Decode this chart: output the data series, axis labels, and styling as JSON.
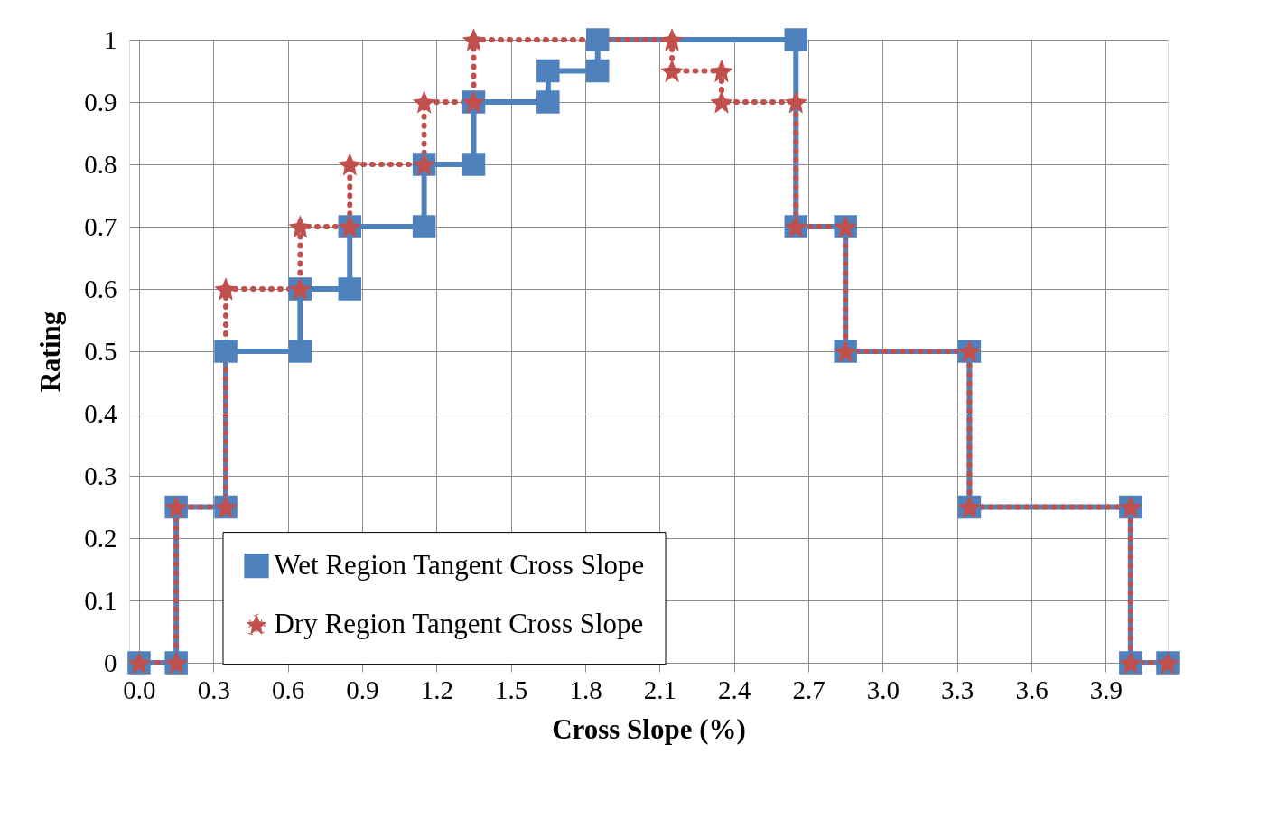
{
  "chart_data": {
    "type": "line",
    "xlabel": "Cross Slope (%)",
    "ylabel": "Rating",
    "xlim": [
      -0.04,
      4.15
    ],
    "ylim": [
      0,
      1
    ],
    "xticks": [
      {
        "value": 0,
        "label": "0.0"
      },
      0.3,
      0.6,
      0.9,
      1.2,
      1.5,
      1.8,
      2.1,
      2.4,
      2.7,
      {
        "value": 3,
        "label": "3.0"
      },
      3.3,
      3.6,
      3.9
    ],
    "yticks": [
      0,
      0.1,
      0.2,
      0.3,
      0.4,
      0.5,
      0.6,
      0.7,
      0.8,
      0.9,
      1
    ],
    "grid": true,
    "legend": "bottom",
    "series": [
      {
        "name": "Wet Region Tangent Cross Slope",
        "color": "#4f81bd",
        "marker": "square",
        "line_style": "solid",
        "x": [
          0,
          0.15,
          0.15,
          0.35,
          0.35,
          0.65,
          0.65,
          0.85,
          0.85,
          1.15,
          1.15,
          1.35,
          1.35,
          1.65,
          1.65,
          1.85,
          1.85,
          2.65,
          2.65,
          2.85,
          2.85,
          3.35,
          3.35,
          4.0,
          4.0,
          4.15
        ],
        "values": [
          0,
          0,
          0.25,
          0.25,
          0.5,
          0.5,
          0.6,
          0.6,
          0.7,
          0.7,
          0.8,
          0.8,
          0.9,
          0.9,
          0.95,
          0.95,
          1,
          1,
          0.7,
          0.7,
          0.5,
          0.5,
          0.25,
          0.25,
          0,
          0
        ]
      },
      {
        "name": "Dry Region Tangent Cross Slope",
        "color": "#c0504d",
        "marker": "star",
        "line_style": "dotted",
        "x": [
          0,
          0.15,
          0.15,
          0.35,
          0.35,
          0.65,
          0.65,
          0.85,
          0.85,
          1.15,
          1.15,
          1.35,
          1.35,
          2.15,
          2.15,
          2.35,
          2.35,
          2.65,
          2.65,
          2.85,
          2.85,
          3.35,
          3.35,
          4.0,
          4.0,
          4.15
        ],
        "values": [
          0,
          0,
          0.25,
          0.25,
          0.6,
          0.6,
          0.7,
          0.7,
          0.8,
          0.8,
          0.9,
          0.9,
          1,
          1,
          0.95,
          0.95,
          0.9,
          0.9,
          0.7,
          0.7,
          0.5,
          0.5,
          0.25,
          0.25,
          0,
          0
        ]
      }
    ]
  }
}
